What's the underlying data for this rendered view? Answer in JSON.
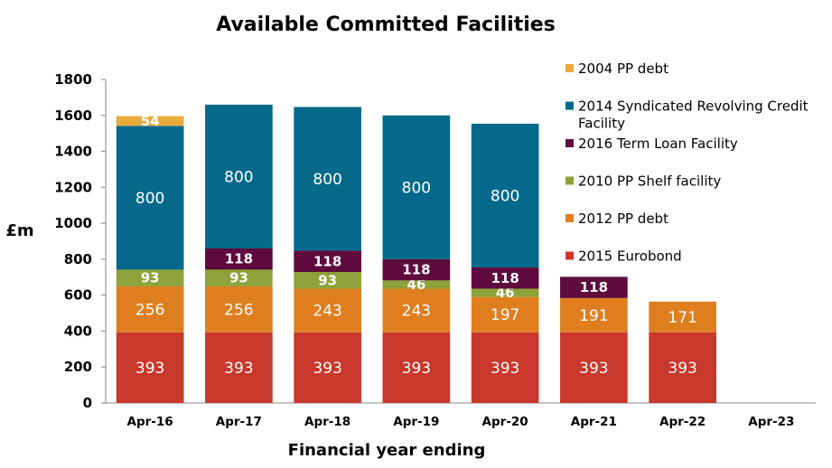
{
  "chart_data": {
    "type": "bar",
    "stacked": true,
    "title": "Available Committed Facilities",
    "xlabel": "Financial year ending",
    "ylabel": "£m",
    "ylim": [
      0,
      1800
    ],
    "yticks": [
      "0",
      "200",
      "400",
      "600",
      "800",
      "1000",
      "1200",
      "1400",
      "1600",
      "1800"
    ],
    "categories": [
      "Apr-16",
      "Apr-17",
      "Apr-18",
      "Apr-19",
      "Apr-20",
      "Apr-21",
      "Apr-22",
      "Apr-23"
    ],
    "legend_position": "right",
    "grid": false,
    "series": [
      {
        "name": "2015 Eurobond",
        "color": "#C9382C",
        "values": [
          393,
          393,
          393,
          393,
          393,
          393,
          393,
          0
        ],
        "labels": [
          "393",
          "393",
          "393",
          "393",
          "393",
          "393",
          "393",
          ""
        ]
      },
      {
        "name": "2012 PP debt",
        "color": "#DE7E1F",
        "values": [
          256,
          256,
          243,
          243,
          197,
          191,
          171,
          0
        ],
        "labels": [
          "256",
          "256",
          "243",
          "243",
          "197",
          "191",
          "171",
          ""
        ]
      },
      {
        "name": "2010 PP Shelf facility",
        "color": "#8DA23A",
        "values": [
          93,
          93,
          93,
          46,
          46,
          0,
          0,
          0
        ],
        "labels": [
          "93",
          "93",
          "93",
          "46",
          "46",
          "",
          "",
          ""
        ]
      },
      {
        "name": "2016 Term Loan Facility",
        "color": "#5E0A3E",
        "values": [
          0,
          118,
          118,
          118,
          118,
          118,
          0,
          0
        ],
        "labels": [
          "",
          "118",
          "118",
          "118",
          "118",
          "118",
          "",
          ""
        ]
      },
      {
        "name": "2014 Syndicated Revolving Credit Facility",
        "legend_lines": [
          "2014 Syndicated Revolving Credit",
          "Facility"
        ],
        "color": "#04698A",
        "values": [
          800,
          800,
          800,
          800,
          800,
          0,
          0,
          0
        ],
        "labels": [
          "800",
          "800",
          "800",
          "800",
          "800",
          "",
          "",
          ""
        ]
      },
      {
        "name": "2004 PP debt",
        "color": "#E8AC3A",
        "values": [
          54,
          0,
          0,
          0,
          0,
          0,
          0,
          0
        ],
        "labels": [
          "54",
          "",
          "",
          "",
          "",
          "",
          "",
          ""
        ]
      }
    ],
    "legend_order": [
      "2004 PP debt",
      "2014 Syndicated Revolving Credit Facility",
      "2016 Term Loan Facility",
      "2010 PP Shelf facility",
      "2012 PP debt",
      "2015 Eurobond"
    ]
  }
}
